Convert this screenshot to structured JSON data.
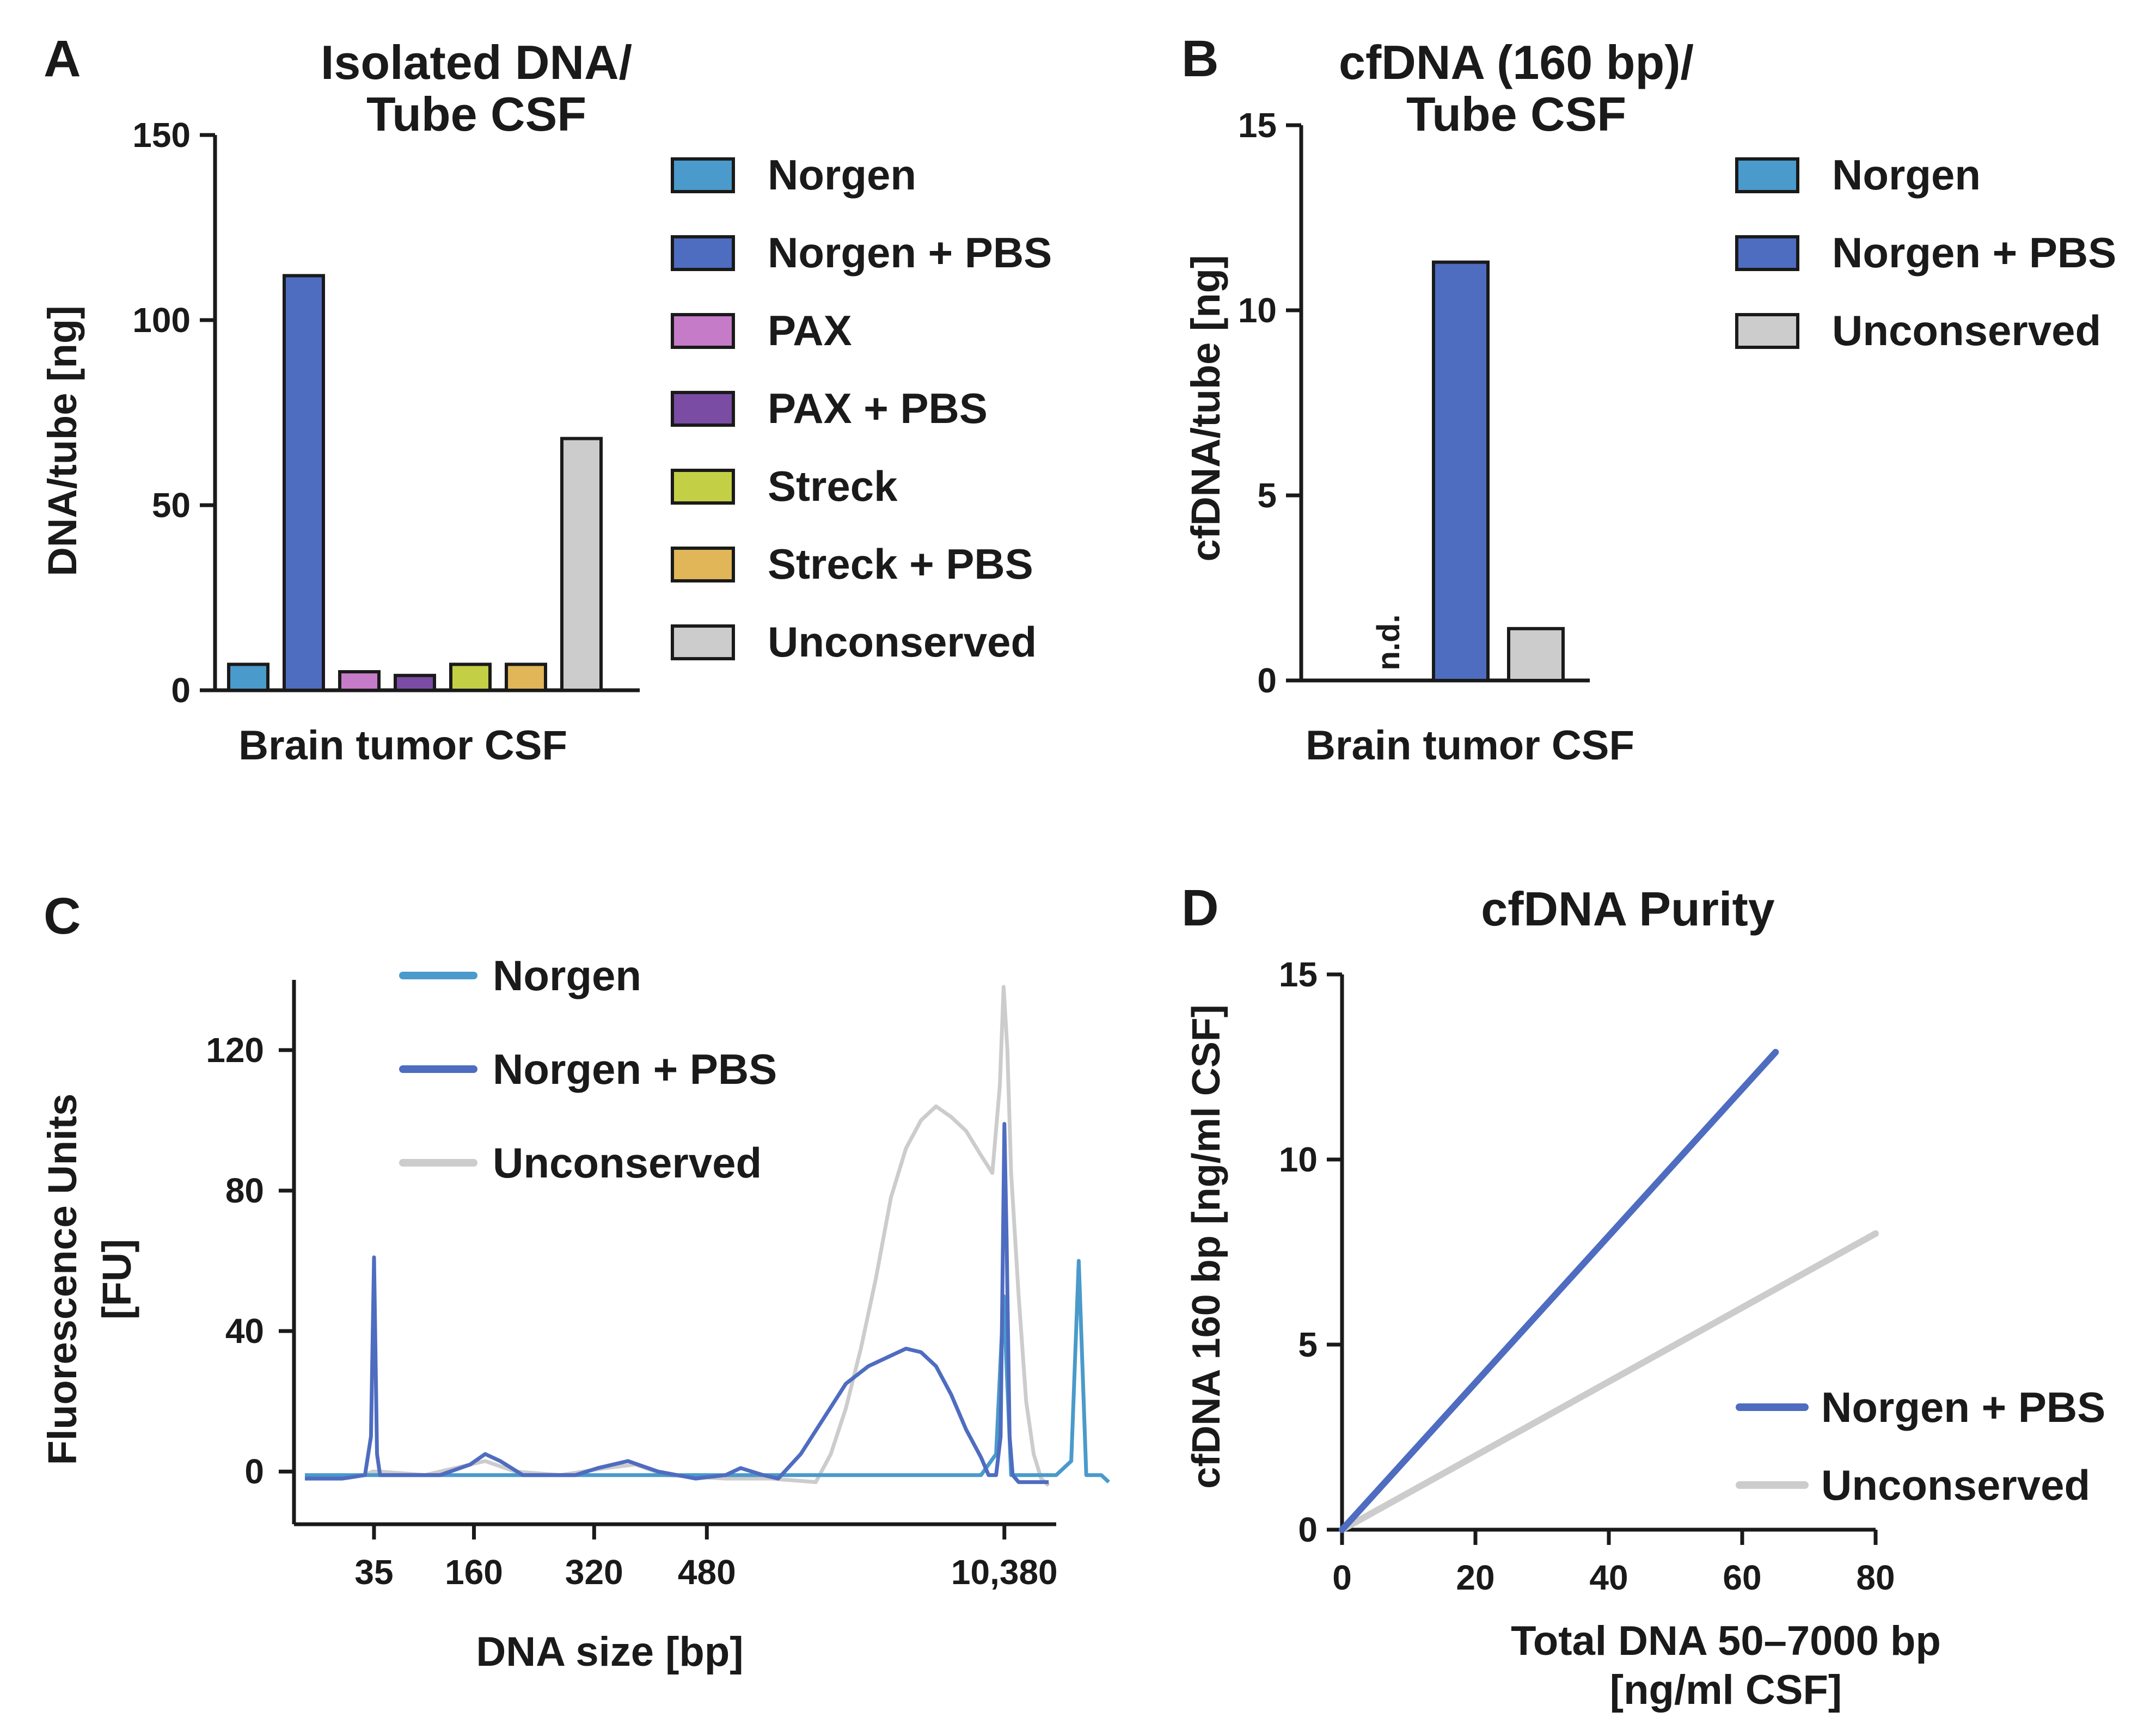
{
  "chart_data": [
    {
      "panel": "A",
      "type": "bar",
      "title_line1": "Isolated DNA/",
      "title_line2": "Tube CSF",
      "ylabel": "DNA/tube [ng]",
      "xlabel": "Brain tumor CSF",
      "ylim": [
        0,
        150
      ],
      "yticks": [
        "0",
        "50",
        "100",
        "150"
      ],
      "series": [
        {
          "name": "Norgen",
          "value": 7,
          "color": "#4a9acb"
        },
        {
          "name": "Norgen + PBS",
          "value": 112,
          "color": "#4e6cc0"
        },
        {
          "name": "PAX",
          "value": 5,
          "color": "#c57bc7"
        },
        {
          "name": "PAX + PBS",
          "value": 4,
          "color": "#7a4ca3"
        },
        {
          "name": "Streck",
          "value": 7,
          "color": "#c3cf45"
        },
        {
          "name": "Streck + PBS",
          "value": 7,
          "color": "#e0b659"
        },
        {
          "name": "Unconserved",
          "value": 68,
          "color": "#cccccc"
        }
      ]
    },
    {
      "panel": "B",
      "type": "bar",
      "title_line1": "cfDNA (160 bp)/",
      "title_line2": "Tube CSF",
      "ylabel": "cfDNA/tube [ng]",
      "xlabel": "Brain tumor CSF",
      "ylim": [
        0,
        15
      ],
      "yticks": [
        "0",
        "5",
        "10",
        "15"
      ],
      "annotation": "n.d.",
      "series": [
        {
          "name": "Norgen",
          "value": null,
          "color": "#4a9acb"
        },
        {
          "name": "Norgen + PBS",
          "value": 11.3,
          "color": "#4e6cc0"
        },
        {
          "name": "Unconserved",
          "value": 1.4,
          "color": "#cccccc"
        }
      ]
    },
    {
      "panel": "C",
      "type": "line",
      "title": "",
      "ylabel_line1": "Fluorescence Units",
      "ylabel_line2": "[FU]",
      "xlabel": "DNA size [bp]",
      "ylim": [
        -15,
        140
      ],
      "yticks": [
        "0",
        "40",
        "80",
        "120"
      ],
      "xticks": [
        "35",
        "160",
        "320",
        "480",
        "10,380"
      ],
      "series": [
        {
          "name": "Norgen",
          "color": "#4a9acb",
          "points": [
            [
              0,
              -1
            ],
            [
              10,
              -1
            ],
            [
              40,
              -1
            ],
            [
              60,
              -1
            ],
            [
              80,
              -1
            ],
            [
              90,
              -1
            ],
            [
              92,
              5
            ],
            [
              93,
              50
            ],
            [
              94,
              -1
            ],
            [
              100,
              -1
            ],
            [
              102,
              3
            ],
            [
              103,
              60
            ],
            [
              104,
              -1
            ],
            [
              106,
              -1
            ],
            [
              107,
              -3
            ]
          ]
        },
        {
          "name": "Norgen + PBS",
          "color": "#4e6cc0",
          "points": [
            [
              0,
              -2
            ],
            [
              5,
              -2
            ],
            [
              8,
              -1
            ],
            [
              8.8,
              10
            ],
            [
              9.2,
              61
            ],
            [
              9.6,
              5
            ],
            [
              10,
              -1
            ],
            [
              18,
              -1
            ],
            [
              22,
              2
            ],
            [
              24,
              5
            ],
            [
              26,
              3
            ],
            [
              29,
              -1
            ],
            [
              36,
              -1
            ],
            [
              39,
              1
            ],
            [
              43,
              3
            ],
            [
              47,
              0
            ],
            [
              52,
              -2
            ],
            [
              56,
              -1
            ],
            [
              58,
              1
            ],
            [
              61,
              -1
            ],
            [
              63,
              -2
            ],
            [
              66,
              5
            ],
            [
              69,
              15
            ],
            [
              72,
              25
            ],
            [
              75,
              30
            ],
            [
              78,
              33
            ],
            [
              80,
              35
            ],
            [
              82,
              34
            ],
            [
              84,
              30
            ],
            [
              86,
              22
            ],
            [
              88,
              12
            ],
            [
              90,
              4
            ],
            [
              91,
              -1
            ],
            [
              92,
              -1
            ],
            [
              92.6,
              10
            ],
            [
              93.1,
              99
            ],
            [
              93.4,
              66
            ],
            [
              93.8,
              10
            ],
            [
              94.2,
              -1
            ],
            [
              95,
              -3
            ],
            [
              97,
              -3
            ],
            [
              99,
              -3
            ]
          ]
        },
        {
          "name": "Unconserved",
          "color": "#cccccc",
          "points": [
            [
              0,
              -2
            ],
            [
              5,
              -2
            ],
            [
              8,
              -1
            ],
            [
              9,
              0
            ],
            [
              10,
              0
            ],
            [
              16,
              -1
            ],
            [
              20,
              1
            ],
            [
              24,
              3
            ],
            [
              28,
              0
            ],
            [
              34,
              -1
            ],
            [
              40,
              1
            ],
            [
              44,
              2
            ],
            [
              48,
              -1
            ],
            [
              56,
              -2
            ],
            [
              62,
              -2
            ],
            [
              68,
              -3
            ],
            [
              70,
              5
            ],
            [
              72,
              18
            ],
            [
              74,
              35
            ],
            [
              76,
              55
            ],
            [
              78,
              78
            ],
            [
              80,
              92
            ],
            [
              82,
              100
            ],
            [
              84,
              104
            ],
            [
              86,
              101
            ],
            [
              88,
              97
            ],
            [
              90,
              90
            ],
            [
              91.5,
              85
            ],
            [
              92.5,
              110
            ],
            [
              93,
              138
            ],
            [
              93.5,
              120
            ],
            [
              94,
              85
            ],
            [
              95,
              50
            ],
            [
              96,
              20
            ],
            [
              97,
              5
            ],
            [
              98,
              -2
            ],
            [
              99,
              -4
            ]
          ]
        }
      ]
    },
    {
      "panel": "D",
      "type": "line",
      "title": "cfDNA Purity",
      "ylabel": "cfDNA 160 bp  [ng/ml CSF]",
      "xlabel_line1": "Total DNA 50–7000 bp",
      "xlabel_line2": "[ng/ml CSF]",
      "xlim": [
        0,
        80
      ],
      "ylim": [
        0,
        15
      ],
      "xticks": [
        "0",
        "20",
        "40",
        "60",
        "80"
      ],
      "yticks": [
        "0",
        "5",
        "10",
        "15"
      ],
      "series": [
        {
          "name": "Norgen + PBS",
          "color": "#4e6cc0",
          "points": [
            [
              0,
              0
            ],
            [
              65,
              12.9
            ]
          ]
        },
        {
          "name": "Unconserved",
          "color": "#cccccc",
          "points": [
            [
              0,
              0
            ],
            [
              80,
              8.0
            ]
          ]
        }
      ]
    }
  ],
  "panel_letters": [
    "A",
    "B",
    "C",
    "D"
  ]
}
